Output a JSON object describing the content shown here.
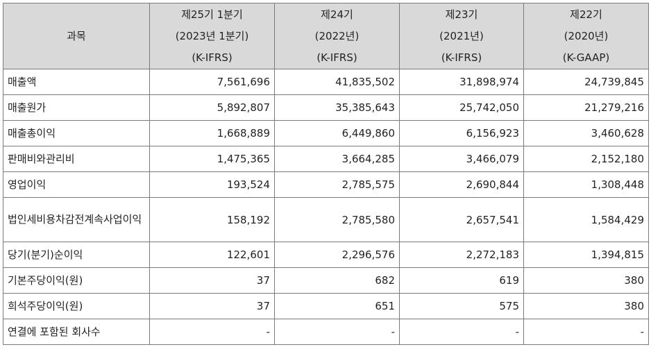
{
  "header": {
    "subject": "과목",
    "columns": [
      {
        "line1": "제25기 1분기",
        "line2": "(2023년 1분기)",
        "line3": "(K-IFRS)"
      },
      {
        "line1": "제24기",
        "line2": "(2022년)",
        "line3": "(K-IFRS)"
      },
      {
        "line1": "제23기",
        "line2": "(2021년)",
        "line3": "(K-IFRS)"
      },
      {
        "line1": "제22기",
        "line2": "(2020년)",
        "line3": "(K-GAAP)"
      }
    ]
  },
  "rows": [
    {
      "label": "매출액",
      "values": [
        "7,561,696",
        "41,835,502",
        "31,898,974",
        "24,739,845"
      ]
    },
    {
      "label": "매출원가",
      "values": [
        "5,892,807",
        "35,385,643",
        "25,742,050",
        "21,279,216"
      ]
    },
    {
      "label": "매출총이익",
      "values": [
        "1,668,889",
        "6,449,860",
        "6,156,923",
        "3,460,628"
      ]
    },
    {
      "label": "판매비와관리비",
      "values": [
        "1,475,365",
        "3,664,285",
        "3,466,079",
        "2,152,180"
      ]
    },
    {
      "label": "영업이익",
      "values": [
        "193,524",
        "2,785,575",
        "2,690,844",
        "1,308,448"
      ]
    },
    {
      "label": "법인세비용차감전계속사업이익",
      "values": [
        "158,192",
        "2,785,580",
        "2,657,541",
        "1,584,429"
      ]
    },
    {
      "label": "당기(분기)순이익",
      "values": [
        "122,601",
        "2,296,576",
        "2,272,183",
        "1,394,815"
      ]
    },
    {
      "label": "기본주당이익(원)",
      "values": [
        "37",
        "682",
        "619",
        "380"
      ]
    },
    {
      "label": "희석주당이익(원)",
      "values": [
        "37",
        "651",
        "575",
        "380"
      ]
    },
    {
      "label": "연결에 포함된 회사수",
      "values": [
        "-",
        "-",
        "-",
        "-"
      ]
    }
  ]
}
